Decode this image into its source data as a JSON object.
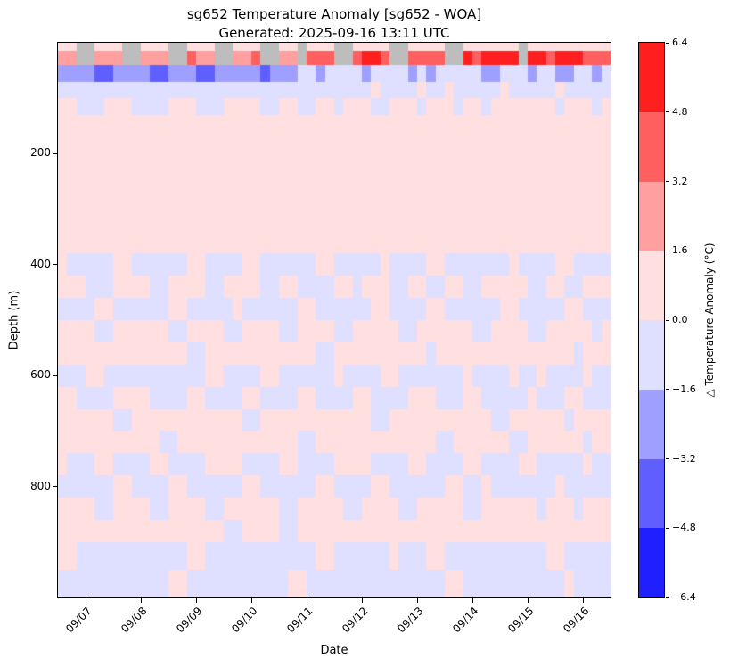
{
  "title": {
    "line1": "sg652 Temperature Anomaly [sg652 - WOA]",
    "line2": "Generated: 2025-09-16 13:11 UTC"
  },
  "axes": {
    "xlabel": "Date",
    "ylabel": "Depth (m)",
    "y_ticks": [
      "200",
      "400",
      "600",
      "800"
    ],
    "y_tick_values": [
      200,
      400,
      600,
      800
    ]
  },
  "colorbar": {
    "label": "△ Temperature Anomaly (°C)",
    "tick_labels": [
      "6.4",
      "4.8",
      "3.2",
      "1.6",
      "0.0",
      "−1.6",
      "−3.2",
      "−4.8",
      "−6.4"
    ],
    "colors_top_to_bottom": [
      "#ff1f1f",
      "#ff5f5f",
      "#ff9f9f",
      "#ffdfdf",
      "#dfdfff",
      "#9f9fff",
      "#5f5fff",
      "#1f1fff"
    ]
  },
  "chart_data": {
    "type": "heatmap",
    "title": "sg652 Temperature Anomaly [sg652 - WOA]",
    "subtitle": "Generated: 2025-09-16 13:11 UTC",
    "xlabel": "Date",
    "ylabel": "Depth (m)",
    "colorbar_label": "△ Temperature Anomaly (°C)",
    "x_tick_labels": [
      "09/07",
      "09/08",
      "09/09",
      "09/10",
      "09/11",
      "09/12",
      "09/13",
      "09/14",
      "09/15",
      "09/16"
    ],
    "depth_range_m": [
      0,
      1000
    ],
    "y_axis_inverted": true,
    "anomaly_range_c": [
      -6.4,
      6.4
    ],
    "anomaly_bin_edges": [
      -6.4,
      -4.8,
      -3.2,
      -1.6,
      0.0,
      1.6,
      3.2,
      4.8,
      6.4
    ],
    "colormap": "bwr, 8 discrete levels; gray = missing data",
    "n_time_columns": 60,
    "depth_edges_m": [
      0,
      15,
      40,
      70,
      100,
      130,
      180,
      230,
      280,
      330,
      380,
      420,
      460,
      500,
      540,
      580,
      620,
      660,
      700,
      740,
      780,
      820,
      860,
      900,
      950,
      1000
    ],
    "value_bins_c": {
      "0": -5.6,
      "1": -4.0,
      "2": -2.4,
      "3": -0.8,
      "4": 0.8,
      "5": 2.4,
      "6": 4.0,
      "7": 5.6,
      "x": null
    },
    "colors": {
      "0": "#1f1fff",
      "1": "#5f5fff",
      "2": "#9f9fff",
      "3": "#dfdfff",
      "4": "#ffdfdf",
      "5": "#ff9f9f",
      "6": "#ff5f5f",
      "7": "#ff1f1f",
      "x": "#bdbdbd"
    },
    "grid_codes": [
      "44xx444xx444xx444xx444xx44x444xx4444xx4444xx444444x444444444",
      "55xx555xx555xx655xx556xx55x666xx6776xx6666xx767777x776777666",
      "222211222211222112222212223323333233332323333322333233223323",
      "333333333333333333333333333333333343333433433333433333433333",
      "443334443333444333444433443344344433444344434434444444344434",
      "444444444444444444444444444444444444444444444444444444444444",
      "444444444444444444444444444444444444444444444444444444444444",
      "444444444444444444444444444444444444444444444444444444444444",
      "444444444444444444444444444444444444444444444444444444444444",
      "444444444444444444444444444444444444444444444444444444444444",
      "433333443333334433334433333344333334333344333333343333443333",
      "444333444433444433444433443333443444334433443344444334433444",
      "333344333333443333343333334433333344333344333333443333344333",
      "444433444444334444334444334444334444433444444334444334444434",
      "444444444444443344444444444433444444444434444444444444443444",
      "333443333333333344333344333333433334433333334333343343333433",
      "443333444433334433334433334433334433334443334433333433344333",
      "444444334444444444443344444444444433444444444443344444434444",
      "444444444443344444444444443344444444444443344444433444444344",
      "433344333344333344443333443333444433334433334433334433333433",
      "333333443333443333334433333344333344333333443343333333433333",
      "444433444433444433444444334444433444433444443344444434443444",
      "444444444444444444334444334444444444444444444444444444444444",
      "443333333333334433333333333344333333433344333333333334433333",
      "333333333333443333333333344333333333333333443333333333343333"
    ]
  }
}
